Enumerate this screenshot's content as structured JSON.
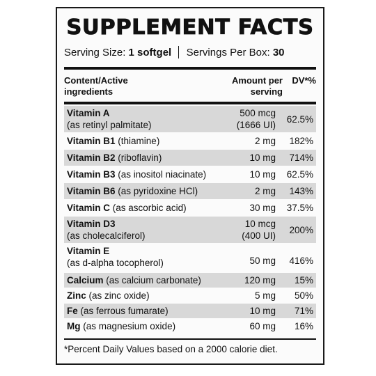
{
  "title": "SUPPLEMENT FACTS",
  "serving": {
    "size_label": "Serving Size:",
    "size_value": "1 softgel",
    "per_box_label": "Servings Per Box:",
    "per_box_value": "30"
  },
  "header": {
    "col1_line1": "Content/Active",
    "col1_line2": "ingredients",
    "col2_line1": "Amount per",
    "col2_line2": "serving",
    "col3": "DV*%"
  },
  "rows": [
    {
      "name": "Vitamin A",
      "detail": "(as retinyl palmitate)",
      "amount": "500 mcg",
      "amount2": "(1666 UI)",
      "dv": "62.5%"
    },
    {
      "name": "Vitamin B1",
      "detail": "(thiamine)",
      "amount": "2 mg",
      "dv": "182%"
    },
    {
      "name": "Vitamin B2",
      "detail": "(riboflavin)",
      "amount": "10 mg",
      "dv": "714%"
    },
    {
      "name": "Vitamin B3",
      "detail": "(as inositol niacinate)",
      "amount": "10 mg",
      "dv": "62.5%"
    },
    {
      "name": "Vitamin B6",
      "detail": "(as pyridoxine HCl)",
      "amount": "2 mg",
      "dv": "143%"
    },
    {
      "name": "Vitamin C",
      "detail": "(as ascorbic acid)",
      "amount": "30 mg",
      "dv": "37.5%"
    },
    {
      "name": "Vitamin D3",
      "detail": "(as cholecalciferol)",
      "amount": "10 mcg",
      "amount2": "(400 UI)",
      "dv": "200%"
    },
    {
      "name": "Vitamin E",
      "detail": "(as d-alpha tocopherol)",
      "amount": "50 mg",
      "dv": "416%"
    },
    {
      "name": "Calcium",
      "detail": "(as calcium carbonate)",
      "amount": "120 mg",
      "dv": "15%"
    },
    {
      "name": "Zinc",
      "detail": "(as zinc oxide)",
      "amount": "5 mg",
      "dv": "50%"
    },
    {
      "name": "Fe",
      "detail": "(as ferrous fumarate)",
      "amount": "10 mg",
      "dv": "71%"
    },
    {
      "name": "Mg",
      "detail": "(as magnesium oxide)",
      "amount": "60 mg",
      "dv": "16%"
    }
  ],
  "footnote": "*Percent Daily Values based on a 2000 calorie diet."
}
